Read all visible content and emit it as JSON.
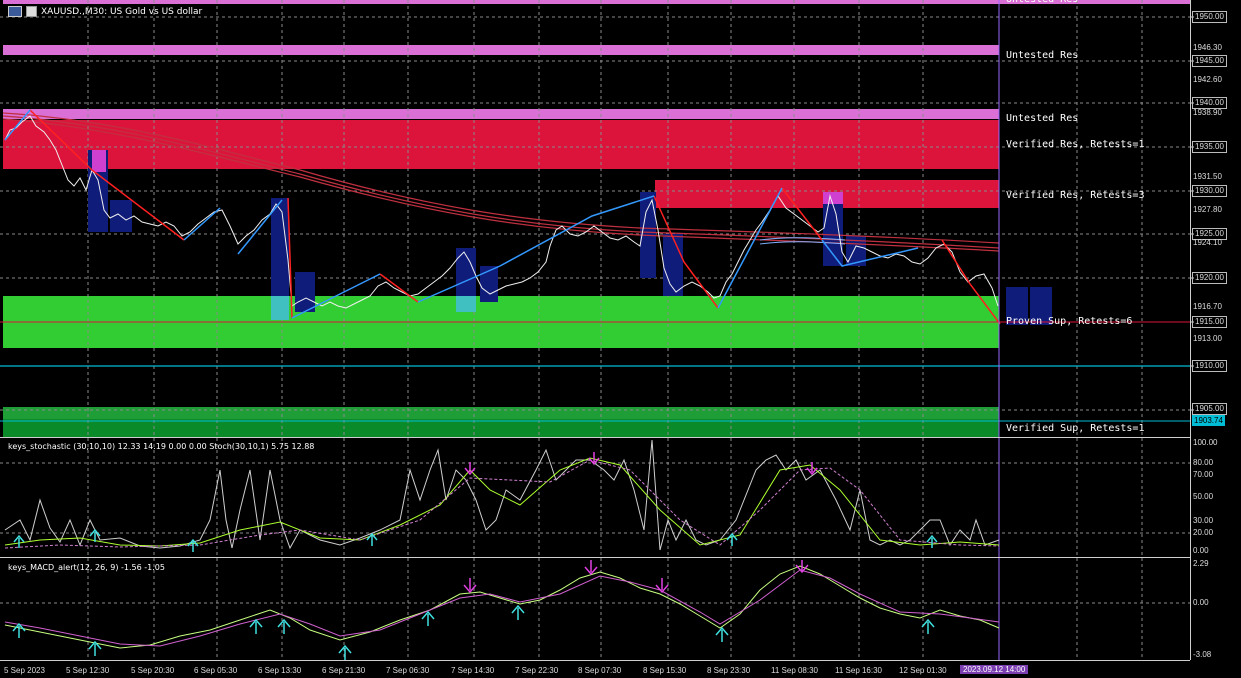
{
  "header": {
    "symbol_title": "XAUUSD.,M30: US Gold vs US dollar"
  },
  "indicators": {
    "stochastic_label": "keys_stochastic (30,10,10) 12.33 14.19 0.00 0.00 Stoch(30,10,1) 5.75 12.88",
    "macd_label": "keys_MACD_alert(12, 26, 9) -1.56 -1.05"
  },
  "zones": [
    {
      "label": "Untested Res"
    },
    {
      "label": "Untested Res"
    },
    {
      "label": "Verified Res, Retests=1"
    },
    {
      "label": "Verified Res, Retests=3"
    },
    {
      "label": "Proven Sup, Retests=6"
    },
    {
      "label": "Verified Sup, Retests=1"
    }
  ],
  "price_axis": [
    "1950.00",
    "1946.30",
    "1945.00",
    "1942.60",
    "1940.00",
    "1938.90",
    "1935.00",
    "1931.50",
    "1930.00",
    "1927.80",
    "1925.00",
    "1924.10",
    "1920.00",
    "1916.70",
    "1915.00",
    "1913.00",
    "1910.00",
    "1905.00",
    "1903.74"
  ],
  "stoch_axis": [
    "100.00",
    "80.00",
    "70.00",
    "50.00",
    "30.00",
    "20.00",
    "0.00"
  ],
  "macd_axis": [
    "2.29",
    "0.00",
    "-3.08"
  ],
  "time_axis": [
    "5 Sep 2023",
    "5 Sep 12:30",
    "5 Sep 20:30",
    "6 Sep 05:30",
    "6 Sep 13:30",
    "6 Sep 21:30",
    "7 Sep 06:30",
    "7 Sep 14:30",
    "7 Sep 22:30",
    "8 Sep 07:30",
    "8 Sep 15:30",
    "8 Sep 23:30",
    "11 Sep 08:30",
    "11 Sep 16:30",
    "12 Sep 01:30",
    "2023.09.12 14:00"
  ],
  "colors": {
    "background": "#000000",
    "resistance_zone": "#dc143c",
    "untested_zone": "#da70d6",
    "support_zone": "#32cd32",
    "support_zone_dark": "#0b8a2a",
    "zigzag_up": "#3399ff",
    "zigzag_down": "#ff2020",
    "ma_lines": "#c03040",
    "cursor_line": "#9966ff",
    "current_price": "#00bcd4"
  }
}
